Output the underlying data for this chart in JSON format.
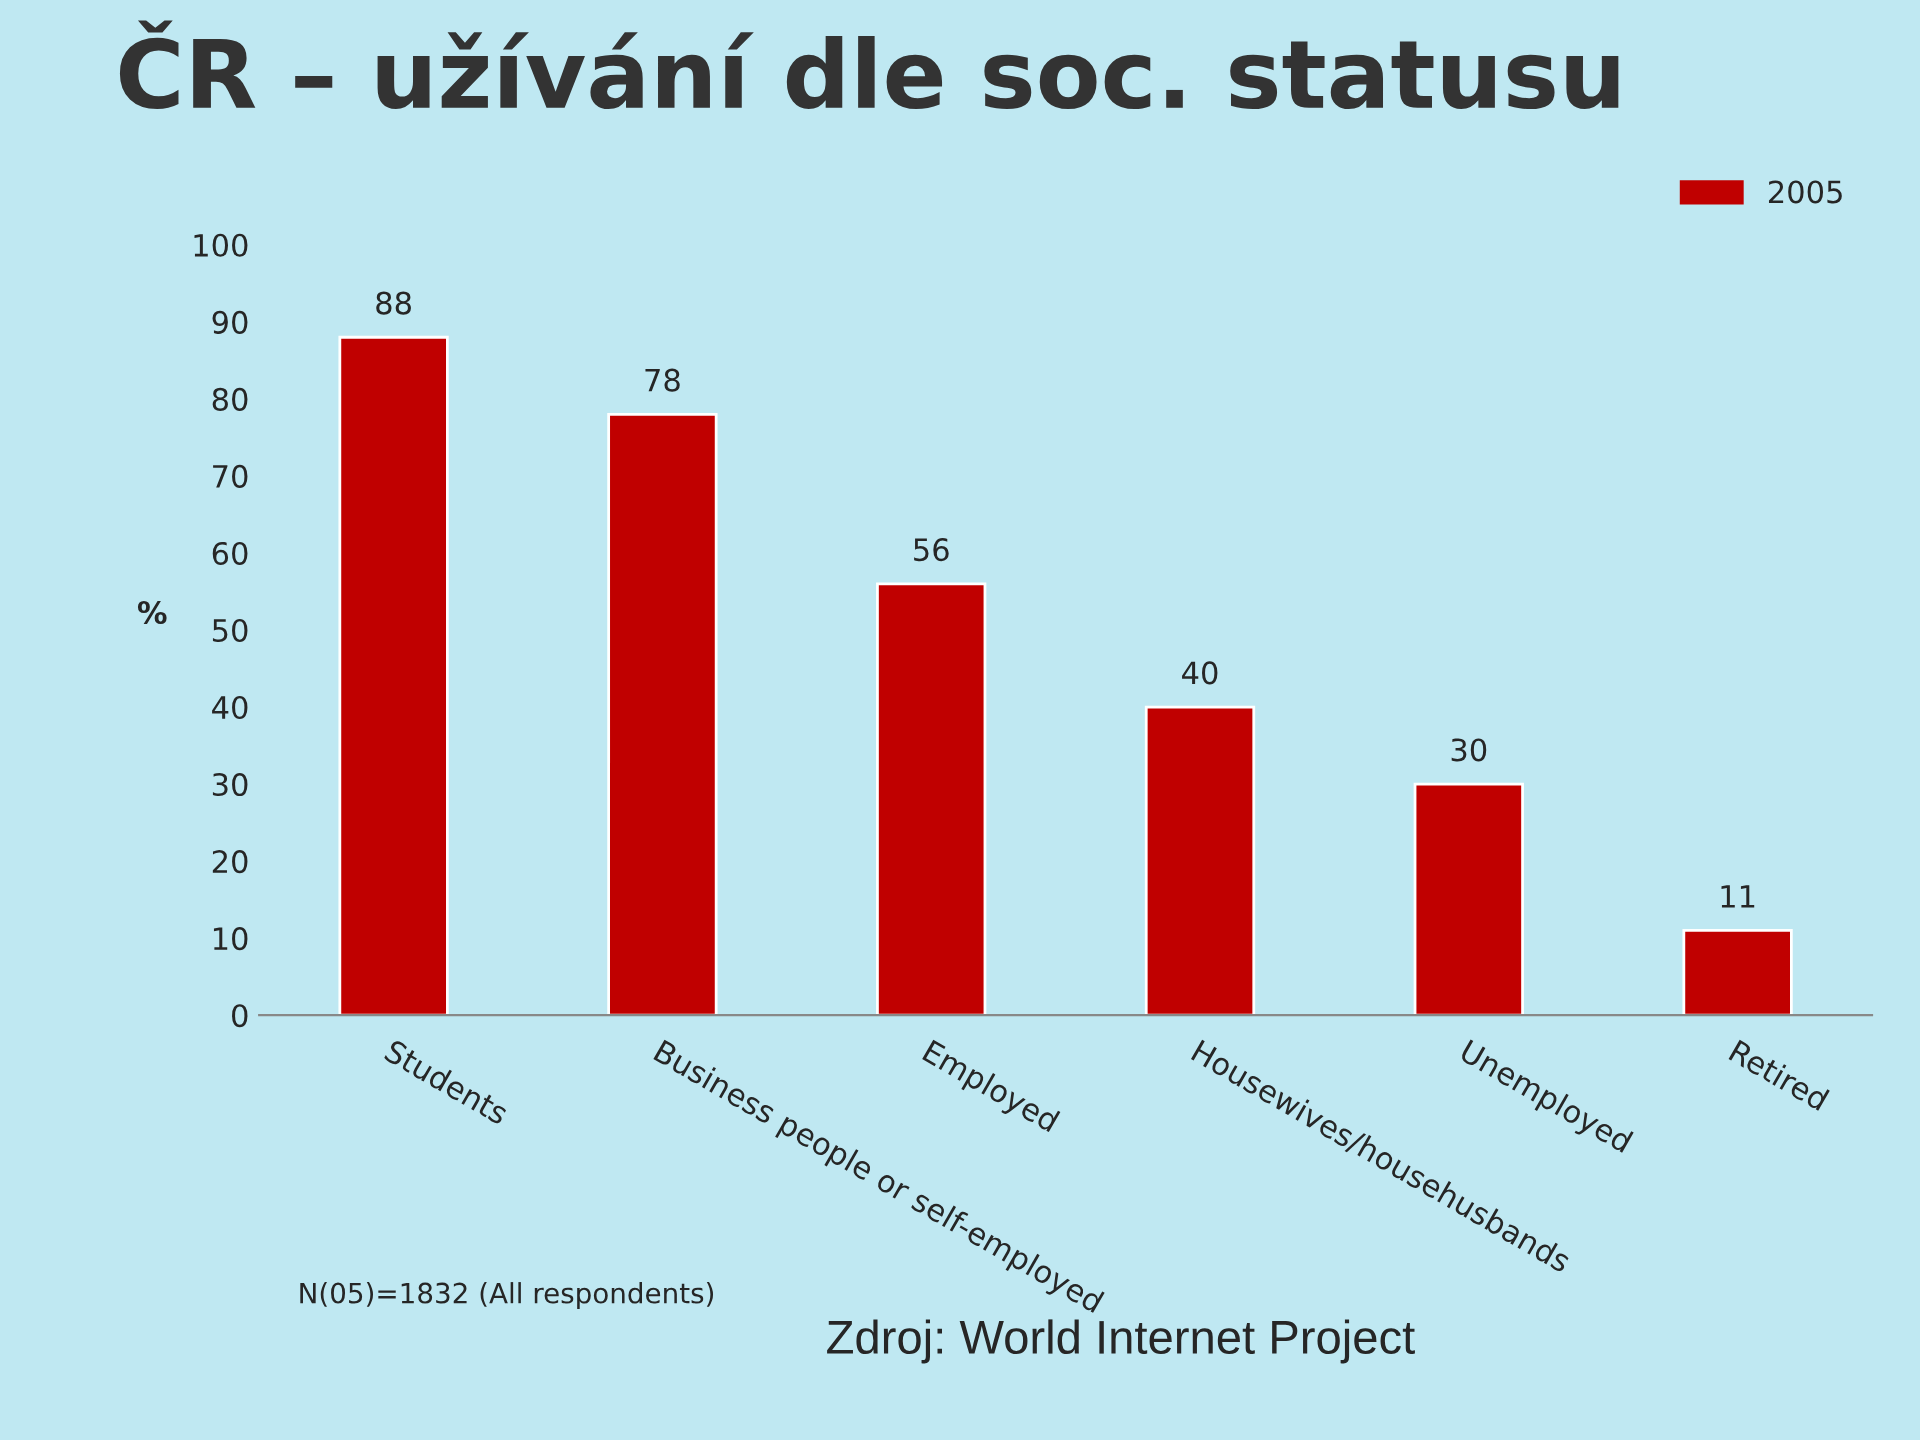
{
  "chart_data": {
    "type": "bar",
    "title": "ČR – užívání dle soc. statusu",
    "categories": [
      "Students",
      "Business people or self-employed",
      "Employed",
      "Housewives/househusbands",
      "Unemployed",
      "Retired"
    ],
    "series": [
      {
        "name": "2005",
        "color": "#c00000",
        "values": [
          88,
          78,
          56,
          40,
          30,
          11
        ]
      }
    ],
    "ylabel": "%",
    "ylim": [
      0,
      100
    ],
    "yticks": [
      0,
      10,
      20,
      30,
      40,
      50,
      60,
      70,
      80,
      90,
      100
    ],
    "data_labels": true,
    "legend": "top right",
    "grid": false,
    "annotations": [
      "N(05)=1832 (All respondents)",
      "Zdroj: World Internet Project"
    ]
  }
}
